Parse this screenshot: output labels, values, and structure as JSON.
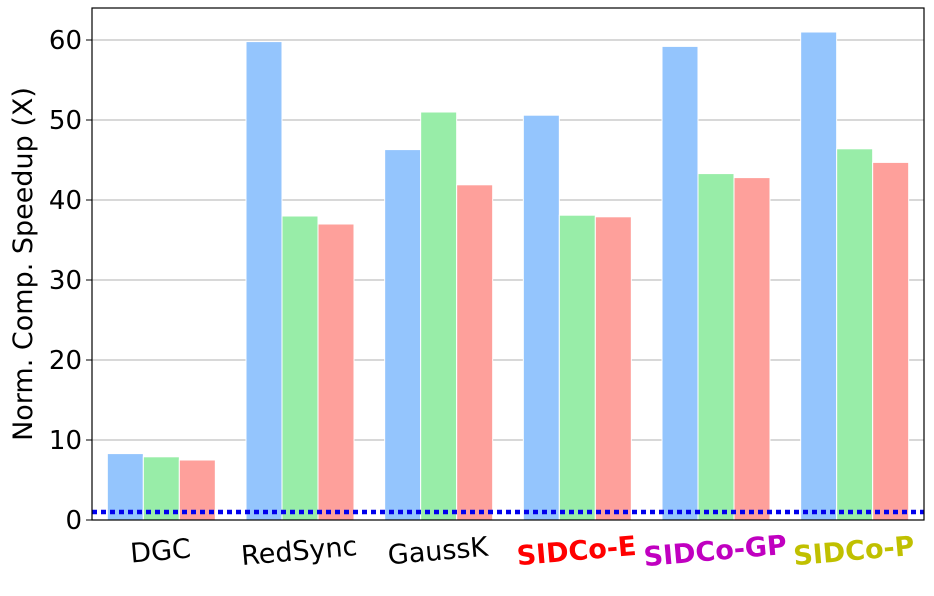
{
  "chart_data": {
    "type": "bar",
    "title": "",
    "xlabel": "",
    "ylabel": "Norm. Comp. Speedup (X)",
    "ylim": [
      0,
      64
    ],
    "yticks": [
      0,
      10,
      20,
      30,
      40,
      50,
      60
    ],
    "grid": "horizontal",
    "categories": [
      {
        "label": "DGC",
        "color": "#000000",
        "bold": false
      },
      {
        "label": "RedSync",
        "color": "#000000",
        "bold": false
      },
      {
        "label": "GaussK",
        "color": "#000000",
        "bold": false
      },
      {
        "label": "SIDCo-E",
        "color": "#ff0000",
        "bold": true
      },
      {
        "label": "SIDCo-GP",
        "color": "#c000c0",
        "bold": true
      },
      {
        "label": "SIDCo-P",
        "color": "#c0c000",
        "bold": true
      }
    ],
    "series": [
      {
        "color": "#94c5fd",
        "values": [
          8.3,
          59.8,
          46.3,
          50.6,
          59.2,
          61.0
        ]
      },
      {
        "color": "#98eda8",
        "values": [
          7.9,
          38.0,
          51.0,
          38.1,
          43.3,
          46.4
        ]
      },
      {
        "color": "#fea09b",
        "values": [
          7.5,
          37.0,
          41.9,
          37.9,
          42.8,
          44.7
        ]
      }
    ],
    "reference_line": {
      "y": 1,
      "color": "#0000ee",
      "style": "dotted"
    }
  }
}
